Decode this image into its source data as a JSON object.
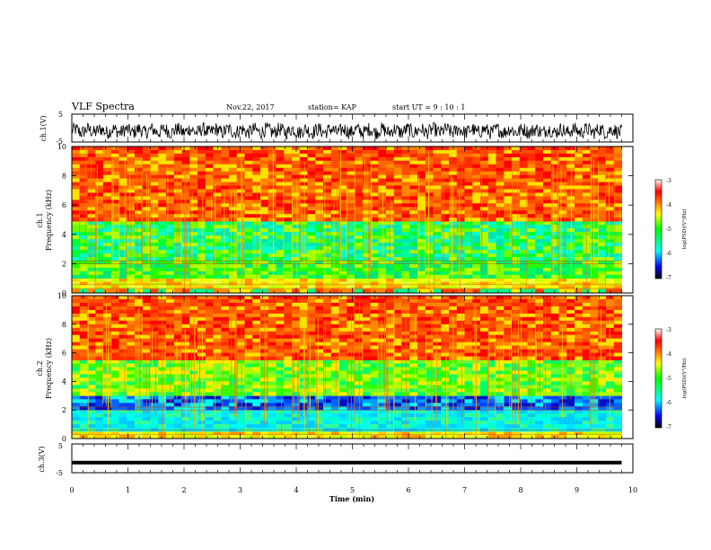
{
  "header": {
    "title": "VLF Spectra",
    "date": "Nov.22, 2017",
    "station": "station= KAP",
    "start": "start  UT  =   9 : 10 : 1"
  },
  "chart_data": [
    {
      "type": "line",
      "name": "ch1-waveform",
      "ylabel": "ch.1(V)",
      "ylim": [
        -5,
        5
      ],
      "yticks": [
        "5",
        "-5"
      ],
      "xlim": [
        0,
        10
      ],
      "data_extent_min": 9.8,
      "description_values": {
        "typical_range": [
          -4,
          2
        ]
      }
    },
    {
      "type": "heatmap",
      "name": "ch1-spectrogram",
      "ylabel_top": "ch.1",
      "ylabel": "Frequency (kHz)",
      "ylim": [
        0,
        10
      ],
      "yticks": [
        "0",
        "2",
        "4",
        "6",
        "8",
        "10"
      ],
      "xlim": [
        0,
        9.8
      ],
      "bands_khz": [
        {
          "range": [
            0,
            0.3
          ],
          "level": "mixed"
        },
        {
          "range": [
            0.3,
            1.0
          ],
          "level": "yellow"
        },
        {
          "range": [
            1.0,
            2.2
          ],
          "level": "green"
        },
        {
          "range": [
            2.2,
            4.9
          ],
          "level": "green-cyan"
        },
        {
          "range": [
            4.9,
            10
          ],
          "level": "red"
        }
      ],
      "colorbar": {
        "label": "log(PSD)(V²/Hz)",
        "ticks": [
          "-3",
          "-4",
          "-5",
          "-6",
          "-7"
        ],
        "range": [
          -7,
          -3
        ]
      }
    },
    {
      "type": "heatmap",
      "name": "ch2-spectrogram",
      "ylabel_top": "ch.2",
      "ylabel": "Frequency (kHz)",
      "ylim": [
        0,
        10
      ],
      "yticks": [
        "0",
        "2",
        "4",
        "6",
        "8",
        "10"
      ],
      "xlim": [
        0,
        9.8
      ],
      "bands_khz": [
        {
          "range": [
            0,
            0.5
          ],
          "level": "yellow"
        },
        {
          "range": [
            0.5,
            2.0
          ],
          "level": "cyan"
        },
        {
          "range": [
            2.0,
            3.0
          ],
          "level": "blue"
        },
        {
          "range": [
            3.0,
            5.5
          ],
          "level": "green-yellow"
        },
        {
          "range": [
            5.5,
            10
          ],
          "level": "red"
        }
      ],
      "colorbar": {
        "label": "log(PSD)(V²/Hz)",
        "ticks": [
          "-3",
          "-4",
          "-5",
          "-6",
          "-7"
        ],
        "range": [
          -7,
          -3
        ]
      }
    },
    {
      "type": "line",
      "name": "ch3-waveform",
      "ylabel": "ch.3(V)",
      "ylim": [
        -5,
        5
      ],
      "yticks": [
        "5",
        "-5"
      ],
      "xlim": [
        0,
        10
      ],
      "values_const": -1.5
    }
  ],
  "xaxis": {
    "label": "Time (min)",
    "ticks": [
      "0",
      "1",
      "2",
      "3",
      "4",
      "5",
      "6",
      "7",
      "8",
      "9",
      "10"
    ]
  }
}
